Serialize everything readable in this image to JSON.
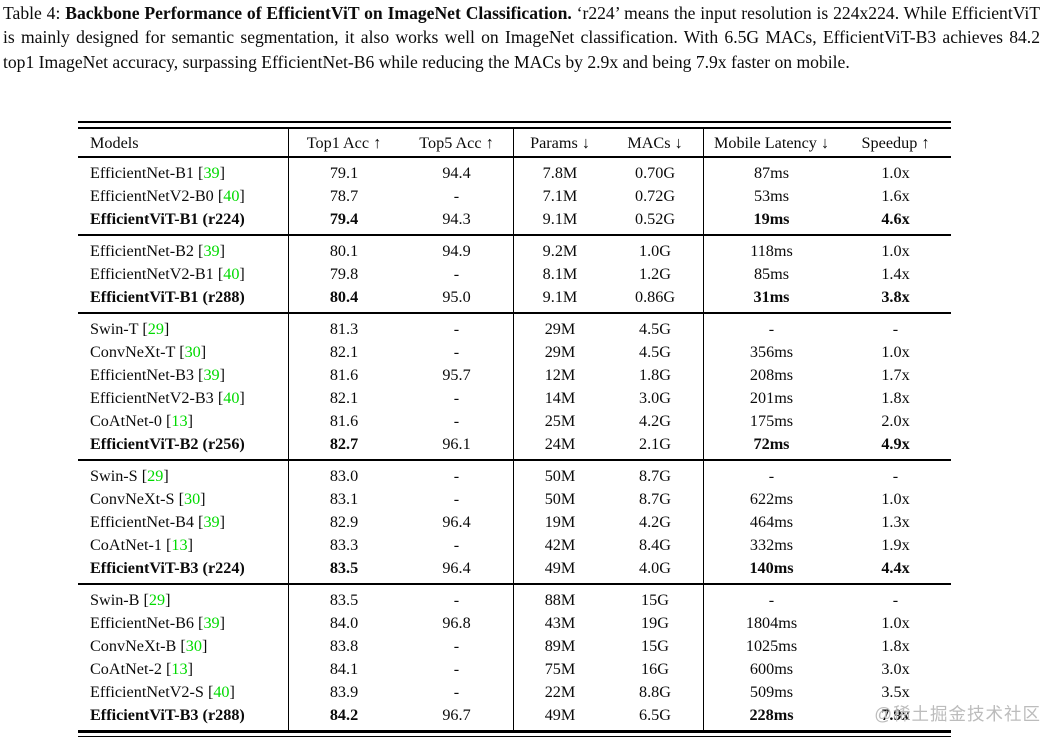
{
  "caption": {
    "prefix": "Table 4: ",
    "bold_title": "Backbone Performance of EfficientViT on ImageNet Classification.",
    "rest": " ‘r224’ means the input resolution is 224x224. While EfficientViT is mainly designed for semantic segmentation, it also works well on ImageNet classification. With 6.5G MACs, EfficientViT-B3 achieves 84.2 top1 ImageNet accuracy, surpassing EfficientNet-B6 while reducing the MACs by 2.9x and being 7.9x faster on mobile."
  },
  "colors": {
    "citation_green": "#00DB00",
    "watermark_gray": "#BCBCBC",
    "rule_black": "#000000"
  },
  "watermark": "@稀土掘金技术社区",
  "table": {
    "headers": [
      "Models",
      "Top1 Acc ↑",
      "Top5 Acc ↑",
      "Params ↓",
      "MACs ↓",
      "Mobile Latency ↓",
      "Speedup ↑"
    ],
    "groups": [
      {
        "rows": [
          {
            "model": "EfficientNet-B1",
            "cite": "39",
            "highlight": false,
            "values": [
              "79.1",
              "94.4",
              "7.8M",
              "0.70G",
              "87ms",
              "1.0x"
            ]
          },
          {
            "model": "EfficientNetV2-B0",
            "cite": "40",
            "highlight": false,
            "values": [
              "78.7",
              "-",
              "7.1M",
              "0.72G",
              "53ms",
              "1.6x"
            ]
          },
          {
            "model": "EfficientViT-B1 (r224)",
            "cite": null,
            "highlight": true,
            "values": [
              "79.4",
              "94.3",
              "9.1M",
              "0.52G",
              "19ms",
              "4.6x"
            ]
          }
        ]
      },
      {
        "rows": [
          {
            "model": "EfficientNet-B2",
            "cite": "39",
            "highlight": false,
            "values": [
              "80.1",
              "94.9",
              "9.2M",
              "1.0G",
              "118ms",
              "1.0x"
            ]
          },
          {
            "model": "EfficientNetV2-B1",
            "cite": "40",
            "highlight": false,
            "values": [
              "79.8",
              "-",
              "8.1M",
              "1.2G",
              "85ms",
              "1.4x"
            ]
          },
          {
            "model": "EfficientViT-B1 (r288)",
            "cite": null,
            "highlight": true,
            "values": [
              "80.4",
              "95.0",
              "9.1M",
              "0.86G",
              "31ms",
              "3.8x"
            ]
          }
        ]
      },
      {
        "rows": [
          {
            "model": "Swin-T",
            "cite": "29",
            "highlight": false,
            "values": [
              "81.3",
              "-",
              "29M",
              "4.5G",
              "-",
              "-"
            ]
          },
          {
            "model": "ConvNeXt-T",
            "cite": "30",
            "highlight": false,
            "values": [
              "82.1",
              "-",
              "29M",
              "4.5G",
              "356ms",
              "1.0x"
            ]
          },
          {
            "model": "EfficientNet-B3",
            "cite": "39",
            "highlight": false,
            "values": [
              "81.6",
              "95.7",
              "12M",
              "1.8G",
              "208ms",
              "1.7x"
            ]
          },
          {
            "model": "EfficientNetV2-B3",
            "cite": "40",
            "highlight": false,
            "values": [
              "82.1",
              "-",
              "14M",
              "3.0G",
              "201ms",
              "1.8x"
            ]
          },
          {
            "model": "CoAtNet-0",
            "cite": "13",
            "highlight": false,
            "values": [
              "81.6",
              "-",
              "25M",
              "4.2G",
              "175ms",
              "2.0x"
            ]
          },
          {
            "model": "EfficientViT-B2 (r256)",
            "cite": null,
            "highlight": true,
            "values": [
              "82.7",
              "96.1",
              "24M",
              "2.1G",
              "72ms",
              "4.9x"
            ]
          }
        ]
      },
      {
        "rows": [
          {
            "model": "Swin-S",
            "cite": "29",
            "highlight": false,
            "values": [
              "83.0",
              "-",
              "50M",
              "8.7G",
              "-",
              "-"
            ]
          },
          {
            "model": "ConvNeXt-S",
            "cite": "30",
            "highlight": false,
            "values": [
              "83.1",
              "-",
              "50M",
              "8.7G",
              "622ms",
              "1.0x"
            ]
          },
          {
            "model": "EfficientNet-B4",
            "cite": "39",
            "highlight": false,
            "values": [
              "82.9",
              "96.4",
              "19M",
              "4.2G",
              "464ms",
              "1.3x"
            ]
          },
          {
            "model": "CoAtNet-1",
            "cite": "13",
            "highlight": false,
            "values": [
              "83.3",
              "-",
              "42M",
              "8.4G",
              "332ms",
              "1.9x"
            ]
          },
          {
            "model": "EfficientViT-B3 (r224)",
            "cite": null,
            "highlight": true,
            "values": [
              "83.5",
              "96.4",
              "49M",
              "4.0G",
              "140ms",
              "4.4x"
            ]
          }
        ]
      },
      {
        "rows": [
          {
            "model": "Swin-B",
            "cite": "29",
            "highlight": false,
            "values": [
              "83.5",
              "-",
              "88M",
              "15G",
              "-",
              "-"
            ]
          },
          {
            "model": "EfficientNet-B6",
            "cite": "39",
            "highlight": false,
            "values": [
              "84.0",
              "96.8",
              "43M",
              "19G",
              "1804ms",
              "1.0x"
            ]
          },
          {
            "model": "ConvNeXt-B",
            "cite": "30",
            "highlight": false,
            "values": [
              "83.8",
              "-",
              "89M",
              "15G",
              "1025ms",
              "1.8x"
            ]
          },
          {
            "model": "CoAtNet-2",
            "cite": "13",
            "highlight": false,
            "values": [
              "84.1",
              "-",
              "75M",
              "16G",
              "600ms",
              "3.0x"
            ]
          },
          {
            "model": "EfficientNetV2-S",
            "cite": "40",
            "highlight": false,
            "values": [
              "83.9",
              "-",
              "22M",
              "8.8G",
              "509ms",
              "3.5x"
            ]
          },
          {
            "model": "EfficientViT-B3 (r288)",
            "cite": null,
            "highlight": true,
            "values": [
              "84.2",
              "96.7",
              "49M",
              "6.5G",
              "228ms",
              "7.9x"
            ]
          }
        ]
      }
    ],
    "bold_value_columns_in_highlight_rows": [
      0,
      4,
      5
    ]
  }
}
